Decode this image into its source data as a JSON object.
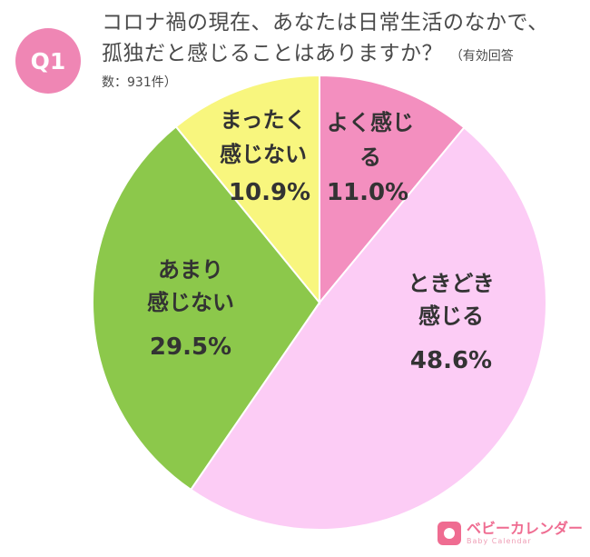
{
  "badge": {
    "label": "Q1"
  },
  "question": {
    "line1": "コロナ禍の現在、あなたは日常生活のなかで、",
    "line2": "孤独だと感じることはありますか？",
    "note_part1": "（有効回答",
    "note_part2": "数：931件）"
  },
  "colors": {
    "badge": "#ef86b4",
    "slice_yoku": "#f38fbf",
    "slice_tokidoki": "#fcccf5",
    "slice_amari": "#8cc84b",
    "slice_mattaku": "#f8f67e"
  },
  "chart_data": {
    "type": "pie",
    "start": "12 o'clock",
    "direction": "clockwise",
    "slices": [
      {
        "label_lines": [
          "よく感じ",
          "る"
        ],
        "value": 11.0,
        "value_text": "11.0%"
      },
      {
        "label_lines": [
          "ときどき",
          "感じる"
        ],
        "value": 48.6,
        "value_text": "48.6%"
      },
      {
        "label_lines": [
          "あまり",
          "感じない"
        ],
        "value": 29.5,
        "value_text": "29.5%"
      },
      {
        "label_lines": [
          "まったく",
          "感じない"
        ],
        "value": 10.9,
        "value_text": "10.9%"
      }
    ]
  },
  "logo": {
    "main": "ベビーカレンダー",
    "sub": "Baby Calendar"
  }
}
